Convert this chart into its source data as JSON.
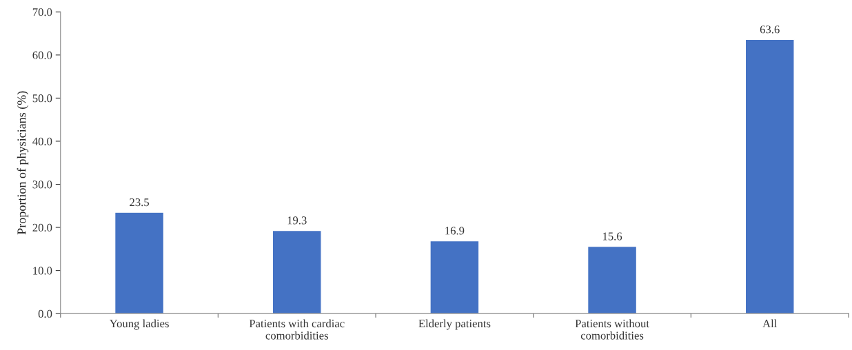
{
  "chart_data": {
    "type": "bar",
    "ylabel": "Proportion of physicians (%)",
    "categories": [
      "Young ladies",
      "Patients with cardiac\ncomorbidities",
      "Elderly patients",
      "Patients without\ncomorbidities",
      "All"
    ],
    "values": [
      23.5,
      19.3,
      16.9,
      15.6,
      63.6
    ],
    "color": "#4472c4",
    "ylim": [
      0,
      70
    ],
    "yticks": [
      {
        "value": 0,
        "label": "0.0"
      },
      {
        "value": 10,
        "label": "10.0"
      },
      {
        "value": 20,
        "label": "20.0"
      },
      {
        "value": 30,
        "label": "30.0"
      },
      {
        "value": 40,
        "label": "40.0"
      },
      {
        "value": 50,
        "label": "50.0"
      },
      {
        "value": 60,
        "label": "60.0"
      },
      {
        "value": 70,
        "label": "70.0"
      }
    ],
    "data_labels": true,
    "grid": false,
    "legend": false
  }
}
